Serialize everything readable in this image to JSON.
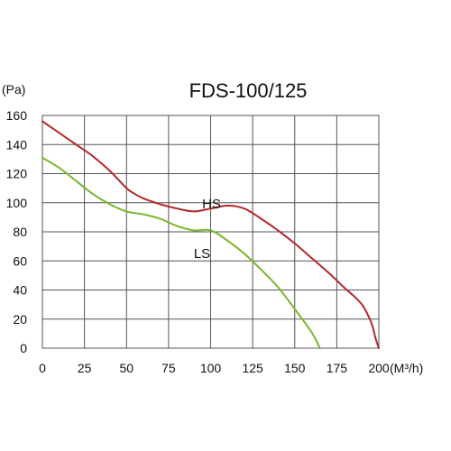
{
  "chart_data": {
    "type": "line",
    "title": "FDS-100/125",
    "ylabel": "(Pa)",
    "xlabel": "(M³/h)",
    "xlim": [
      0,
      200
    ],
    "ylim": [
      0,
      160
    ],
    "x_ticks": [
      "0",
      "25",
      "50",
      "75",
      "100",
      "125",
      "150",
      "175",
      "200"
    ],
    "y_ticks": [
      "160",
      "140",
      "120",
      "100",
      "80",
      "60",
      "40",
      "20",
      "0"
    ],
    "grid": true,
    "series": [
      {
        "name": "HS",
        "color": "#b3272c",
        "points": [
          [
            0,
            156
          ],
          [
            10,
            148
          ],
          [
            20,
            140
          ],
          [
            30,
            132
          ],
          [
            40,
            122
          ],
          [
            50,
            110
          ],
          [
            55,
            106
          ],
          [
            60,
            103
          ],
          [
            70,
            99
          ],
          [
            80,
            96
          ],
          [
            90,
            94
          ],
          [
            100,
            96
          ],
          [
            110,
            98
          ],
          [
            120,
            96
          ],
          [
            130,
            89
          ],
          [
            140,
            81
          ],
          [
            150,
            72
          ],
          [
            160,
            62
          ],
          [
            170,
            52
          ],
          [
            180,
            41
          ],
          [
            185,
            36
          ],
          [
            190,
            30
          ],
          [
            193,
            24
          ],
          [
            196,
            16
          ],
          [
            198,
            7
          ],
          [
            200,
            0
          ]
        ]
      },
      {
        "name": "LS",
        "color": "#7db52c",
        "points": [
          [
            0,
            131
          ],
          [
            10,
            124
          ],
          [
            20,
            115
          ],
          [
            30,
            106
          ],
          [
            40,
            99
          ],
          [
            50,
            94
          ],
          [
            60,
            92
          ],
          [
            70,
            89
          ],
          [
            80,
            84
          ],
          [
            90,
            81
          ],
          [
            100,
            81
          ],
          [
            110,
            74
          ],
          [
            120,
            65
          ],
          [
            130,
            54
          ],
          [
            140,
            42
          ],
          [
            150,
            27
          ],
          [
            160,
            11
          ],
          [
            165,
            0
          ]
        ]
      }
    ]
  }
}
